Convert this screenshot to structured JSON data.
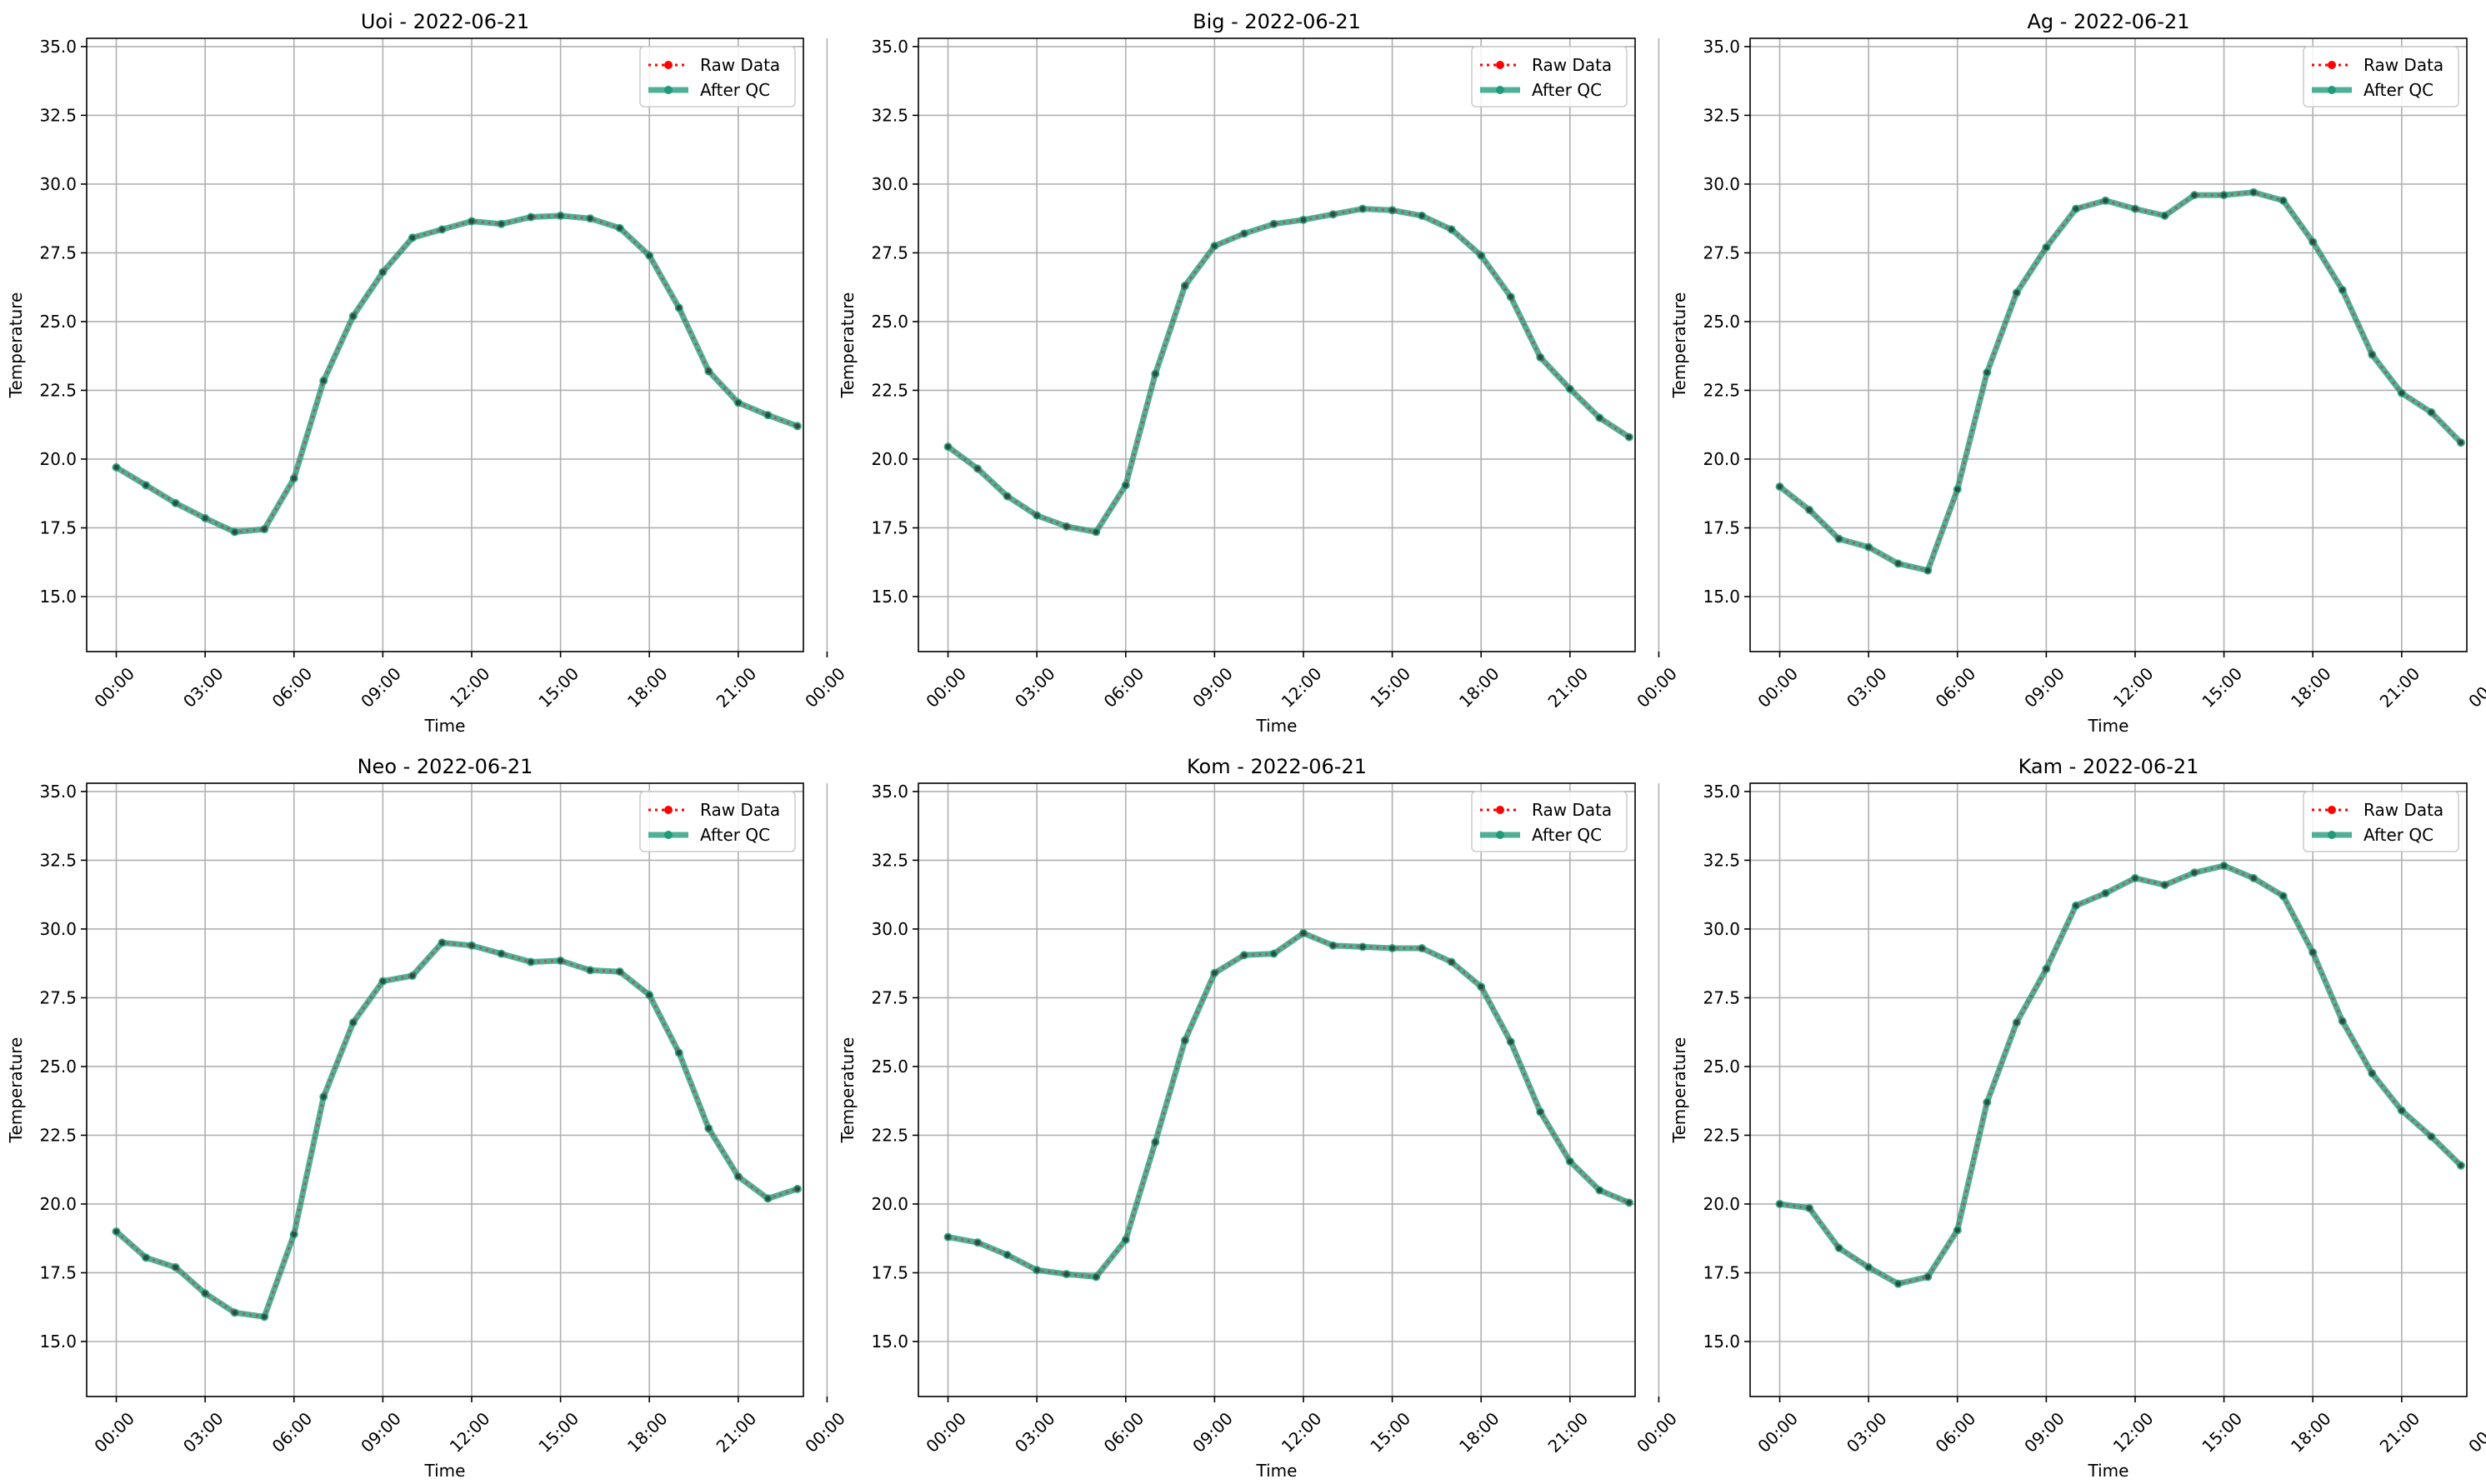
{
  "chart_data": [
    {
      "type": "line",
      "title": "Uoi - 2022-06-21",
      "xlabel": "Time",
      "ylabel": "Temperature",
      "ylim": [
        13.0,
        35.3
      ],
      "xlim": [
        -1.0,
        23.2
      ],
      "yticks": [
        "15.0",
        "17.5",
        "20.0",
        "22.5",
        "25.0",
        "27.5",
        "30.0",
        "32.5",
        "35.0"
      ],
      "xticks": [
        "00:00",
        "03:00",
        "06:00",
        "09:00",
        "12:00",
        "15:00",
        "18:00",
        "21:00",
        "00:00"
      ],
      "grid": true,
      "legend": "top-right",
      "x": [
        "00:00",
        "01:00",
        "02:00",
        "03:00",
        "04:00",
        "05:00",
        "06:00",
        "07:00",
        "08:00",
        "09:00",
        "10:00",
        "11:00",
        "12:00",
        "13:00",
        "14:00",
        "15:00",
        "16:00",
        "17:00",
        "18:00",
        "19:00",
        "20:00",
        "21:00",
        "22:00",
        "23:00"
      ],
      "series": [
        {
          "name": "Raw Data",
          "style": "dotted",
          "color": "#ff0000",
          "values": [
            19.7,
            19.05,
            18.4,
            17.85,
            17.35,
            17.45,
            19.3,
            22.85,
            25.2,
            26.8,
            28.05,
            28.35,
            28.65,
            28.55,
            28.8,
            28.85,
            28.75,
            28.4,
            27.4,
            25.5,
            23.2,
            22.05,
            21.6,
            21.2
          ]
        },
        {
          "name": "After QC",
          "style": "solid",
          "color": "#1f9a7a",
          "values": [
            19.7,
            19.05,
            18.4,
            17.85,
            17.35,
            17.45,
            19.3,
            22.85,
            25.2,
            26.8,
            28.05,
            28.35,
            28.65,
            28.55,
            28.8,
            28.85,
            28.75,
            28.4,
            27.4,
            25.5,
            23.2,
            22.05,
            21.6,
            21.2
          ]
        }
      ]
    },
    {
      "type": "line",
      "title": "Big - 2022-06-21",
      "xlabel": "Time",
      "ylabel": "Temperature",
      "ylim": [
        13.0,
        35.3
      ],
      "xlim": [
        -1.0,
        23.2
      ],
      "yticks": [
        "15.0",
        "17.5",
        "20.0",
        "22.5",
        "25.0",
        "27.5",
        "30.0",
        "32.5",
        "35.0"
      ],
      "xticks": [
        "00:00",
        "03:00",
        "06:00",
        "09:00",
        "12:00",
        "15:00",
        "18:00",
        "21:00",
        "00:00"
      ],
      "grid": true,
      "legend": "top-right",
      "x": [
        "00:00",
        "01:00",
        "02:00",
        "03:00",
        "04:00",
        "05:00",
        "06:00",
        "07:00",
        "08:00",
        "09:00",
        "10:00",
        "11:00",
        "12:00",
        "13:00",
        "14:00",
        "15:00",
        "16:00",
        "17:00",
        "18:00",
        "19:00",
        "20:00",
        "21:00",
        "22:00",
        "23:00"
      ],
      "series": [
        {
          "name": "Raw Data",
          "style": "dotted",
          "color": "#ff0000",
          "values": [
            20.45,
            19.65,
            18.65,
            17.95,
            17.55,
            17.35,
            19.05,
            23.1,
            26.3,
            27.75,
            28.2,
            28.55,
            28.7,
            28.9,
            29.1,
            29.05,
            28.85,
            28.35,
            27.4,
            25.9,
            23.7,
            22.55,
            21.5,
            20.8
          ]
        },
        {
          "name": "After QC",
          "style": "solid",
          "color": "#1f9a7a",
          "values": [
            20.45,
            19.65,
            18.65,
            17.95,
            17.55,
            17.35,
            19.05,
            23.1,
            26.3,
            27.75,
            28.2,
            28.55,
            28.7,
            28.9,
            29.1,
            29.05,
            28.85,
            28.35,
            27.4,
            25.9,
            23.7,
            22.55,
            21.5,
            20.8
          ]
        }
      ]
    },
    {
      "type": "line",
      "title": "Ag - 2022-06-21",
      "xlabel": "Time",
      "ylabel": "Temperature",
      "ylim": [
        13.0,
        35.3
      ],
      "xlim": [
        -1.0,
        23.2
      ],
      "yticks": [
        "15.0",
        "17.5",
        "20.0",
        "22.5",
        "25.0",
        "27.5",
        "30.0",
        "32.5",
        "35.0"
      ],
      "xticks": [
        "00:00",
        "03:00",
        "06:00",
        "09:00",
        "12:00",
        "15:00",
        "18:00",
        "21:00",
        "00:00"
      ],
      "grid": true,
      "legend": "top-right",
      "x": [
        "00:00",
        "01:00",
        "02:00",
        "03:00",
        "04:00",
        "05:00",
        "06:00",
        "07:00",
        "08:00",
        "09:00",
        "10:00",
        "11:00",
        "12:00",
        "13:00",
        "14:00",
        "15:00",
        "16:00",
        "17:00",
        "18:00",
        "19:00",
        "20:00",
        "21:00",
        "22:00",
        "23:00"
      ],
      "series": [
        {
          "name": "Raw Data",
          "style": "dotted",
          "color": "#ff0000",
          "values": [
            19.0,
            18.15,
            17.1,
            16.8,
            16.2,
            15.95,
            18.9,
            23.15,
            26.05,
            27.7,
            29.1,
            29.4,
            29.1,
            28.85,
            29.6,
            29.6,
            29.7,
            29.4,
            27.9,
            26.15,
            23.8,
            22.4,
            21.7,
            20.6
          ]
        },
        {
          "name": "After QC",
          "style": "solid",
          "color": "#1f9a7a",
          "values": [
            19.0,
            18.15,
            17.1,
            16.8,
            16.2,
            15.95,
            18.9,
            23.15,
            26.05,
            27.7,
            29.1,
            29.4,
            29.1,
            28.85,
            29.6,
            29.6,
            29.7,
            29.4,
            27.9,
            26.15,
            23.8,
            22.4,
            21.7,
            20.6
          ]
        }
      ]
    },
    {
      "type": "line",
      "title": "Neo - 2022-06-21",
      "xlabel": "Time",
      "ylabel": "Temperature",
      "ylim": [
        13.0,
        35.3
      ],
      "xlim": [
        -1.0,
        23.2
      ],
      "yticks": [
        "15.0",
        "17.5",
        "20.0",
        "22.5",
        "25.0",
        "27.5",
        "30.0",
        "32.5",
        "35.0"
      ],
      "xticks": [
        "00:00",
        "03:00",
        "06:00",
        "09:00",
        "12:00",
        "15:00",
        "18:00",
        "21:00",
        "00:00"
      ],
      "grid": true,
      "legend": "top-right",
      "x": [
        "00:00",
        "01:00",
        "02:00",
        "03:00",
        "04:00",
        "05:00",
        "06:00",
        "07:00",
        "08:00",
        "09:00",
        "10:00",
        "11:00",
        "12:00",
        "13:00",
        "14:00",
        "15:00",
        "16:00",
        "17:00",
        "18:00",
        "19:00",
        "20:00",
        "21:00",
        "22:00",
        "23:00"
      ],
      "series": [
        {
          "name": "Raw Data",
          "style": "dotted",
          "color": "#ff0000",
          "values": [
            19.0,
            18.05,
            17.7,
            16.75,
            16.05,
            15.9,
            18.9,
            23.9,
            26.6,
            28.1,
            28.3,
            29.5,
            29.4,
            29.1,
            28.8,
            28.85,
            28.5,
            28.45,
            27.6,
            25.5,
            22.75,
            21.0,
            20.2,
            20.55
          ]
        },
        {
          "name": "After QC",
          "style": "solid",
          "color": "#1f9a7a",
          "values": [
            19.0,
            18.05,
            17.7,
            16.75,
            16.05,
            15.9,
            18.9,
            23.9,
            26.6,
            28.1,
            28.3,
            29.5,
            29.4,
            29.1,
            28.8,
            28.85,
            28.5,
            28.45,
            27.6,
            25.5,
            22.75,
            21.0,
            20.2,
            20.55
          ]
        }
      ]
    },
    {
      "type": "line",
      "title": "Kom - 2022-06-21",
      "xlabel": "Time",
      "ylabel": "Temperature",
      "ylim": [
        13.0,
        35.3
      ],
      "xlim": [
        -1.0,
        23.2
      ],
      "yticks": [
        "15.0",
        "17.5",
        "20.0",
        "22.5",
        "25.0",
        "27.5",
        "30.0",
        "32.5",
        "35.0"
      ],
      "xticks": [
        "00:00",
        "03:00",
        "06:00",
        "09:00",
        "12:00",
        "15:00",
        "18:00",
        "21:00",
        "00:00"
      ],
      "grid": true,
      "legend": "top-right",
      "x": [
        "00:00",
        "01:00",
        "02:00",
        "03:00",
        "04:00",
        "05:00",
        "06:00",
        "07:00",
        "08:00",
        "09:00",
        "10:00",
        "11:00",
        "12:00",
        "13:00",
        "14:00",
        "15:00",
        "16:00",
        "17:00",
        "18:00",
        "19:00",
        "20:00",
        "21:00",
        "22:00",
        "23:00"
      ],
      "series": [
        {
          "name": "Raw Data",
          "style": "dotted",
          "color": "#ff0000",
          "values": [
            18.8,
            18.6,
            18.15,
            17.6,
            17.45,
            17.35,
            18.7,
            22.25,
            25.95,
            28.4,
            29.05,
            29.1,
            29.85,
            29.4,
            29.35,
            29.3,
            29.3,
            28.8,
            27.9,
            25.9,
            23.35,
            21.55,
            20.5,
            20.05
          ]
        },
        {
          "name": "After QC",
          "style": "solid",
          "color": "#1f9a7a",
          "values": [
            18.8,
            18.6,
            18.15,
            17.6,
            17.45,
            17.35,
            18.7,
            22.25,
            25.95,
            28.4,
            29.05,
            29.1,
            29.85,
            29.4,
            29.35,
            29.3,
            29.3,
            28.8,
            27.9,
            25.9,
            23.35,
            21.55,
            20.5,
            20.05
          ]
        }
      ]
    },
    {
      "type": "line",
      "title": "Kam - 2022-06-21",
      "xlabel": "Time",
      "ylabel": "Temperature",
      "ylim": [
        13.0,
        35.3
      ],
      "xlim": [
        -1.0,
        23.2
      ],
      "yticks": [
        "15.0",
        "17.5",
        "20.0",
        "22.5",
        "25.0",
        "27.5",
        "30.0",
        "32.5",
        "35.0"
      ],
      "xticks": [
        "00:00",
        "03:00",
        "06:00",
        "09:00",
        "12:00",
        "15:00",
        "18:00",
        "21:00",
        "00:00"
      ],
      "grid": true,
      "legend": "top-right",
      "x": [
        "00:00",
        "01:00",
        "02:00",
        "03:00",
        "04:00",
        "05:00",
        "06:00",
        "07:00",
        "08:00",
        "09:00",
        "10:00",
        "11:00",
        "12:00",
        "13:00",
        "14:00",
        "15:00",
        "16:00",
        "17:00",
        "18:00",
        "19:00",
        "20:00",
        "21:00",
        "22:00",
        "23:00"
      ],
      "series": [
        {
          "name": "Raw Data",
          "style": "dotted",
          "color": "#ff0000",
          "values": [
            20.0,
            19.85,
            18.4,
            17.7,
            17.1,
            17.35,
            19.05,
            23.7,
            26.6,
            28.55,
            30.85,
            31.3,
            31.85,
            31.6,
            32.05,
            32.3,
            31.85,
            31.2,
            29.15,
            26.65,
            24.75,
            23.4,
            22.45,
            21.4
          ]
        },
        {
          "name": "After QC",
          "style": "solid",
          "color": "#1f9a7a",
          "values": [
            20.0,
            19.85,
            18.4,
            17.7,
            17.1,
            17.35,
            19.05,
            23.7,
            26.6,
            28.55,
            30.85,
            31.3,
            31.85,
            31.6,
            32.05,
            32.3,
            31.85,
            31.2,
            29.15,
            26.65,
            24.75,
            23.4,
            22.45,
            21.4
          ]
        }
      ]
    }
  ]
}
